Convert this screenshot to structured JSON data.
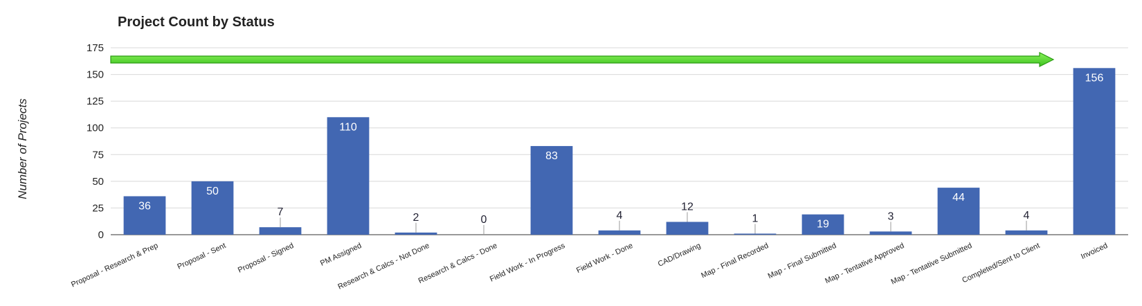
{
  "chart_data": {
    "type": "bar",
    "title": "Project Count by Status",
    "y_label": "Number of Projects",
    "categories": [
      "Proposal - Research & Prep",
      "Proposal - Sent",
      "Proposal - Signed",
      "PM Assigned",
      "Research & Calcs - Not Done",
      "Research & Calcs - Done",
      "Field Work - In Progress",
      "Field Work - Done",
      "CAD/Drawing",
      "Map - Final Recorded",
      "Map - Final Submitted",
      "Map - Tentative Approved",
      "Map - Tentative Submitted",
      "Completed/Sent to Client",
      "Invoiced"
    ],
    "values": [
      36,
      50,
      7,
      110,
      2,
      0,
      83,
      4,
      12,
      1,
      19,
      3,
      44,
      4,
      156
    ],
    "color": "#4267b2",
    "ylim": [
      0,
      175
    ],
    "yticks": [
      0,
      25,
      50,
      75,
      100,
      125,
      150,
      175
    ],
    "grid": true
  }
}
